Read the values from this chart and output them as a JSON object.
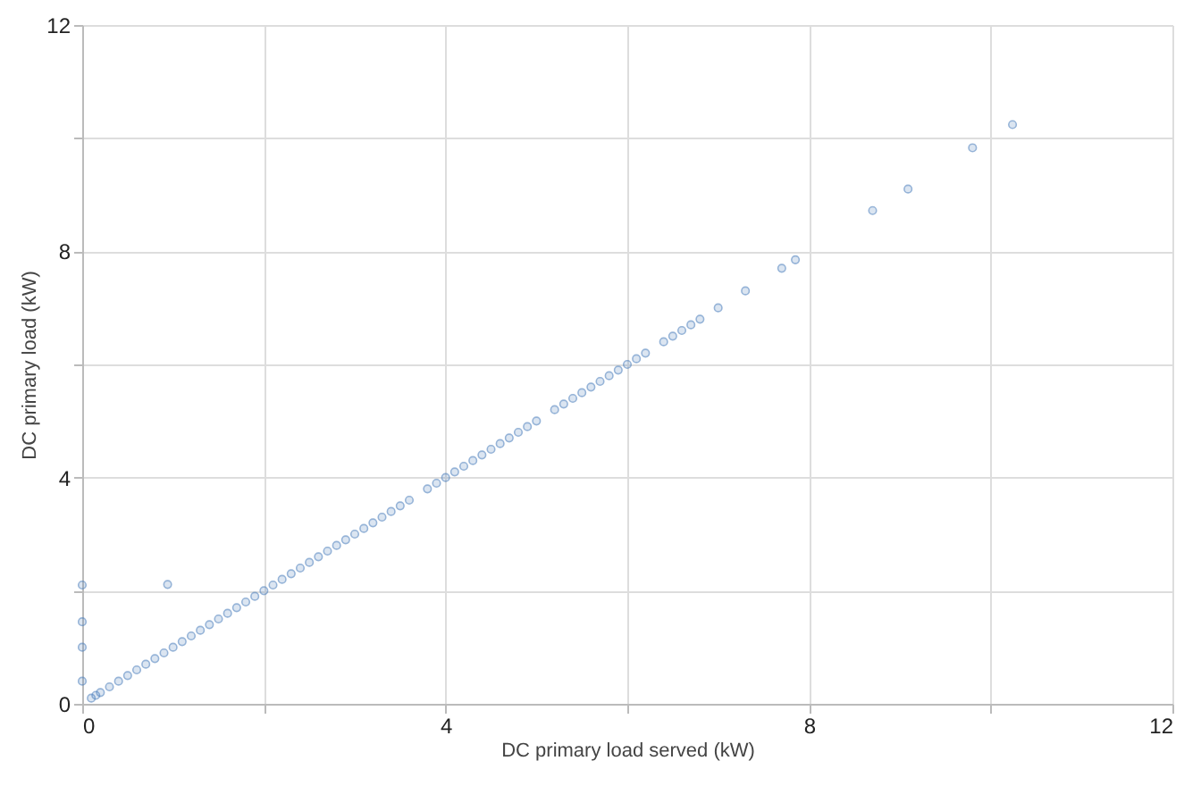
{
  "chart_data": {
    "type": "scatter",
    "xlabel": "DC primary load served (kW)",
    "ylabel": "DC primary load (kW)",
    "xlim": [
      0,
      12
    ],
    "ylim": [
      0,
      12
    ],
    "xticks": [
      0,
      {
        "value": 2,
        "label": null
      },
      4,
      {
        "value": 6,
        "label": null
      },
      8,
      {
        "value": 10,
        "label": null
      },
      12
    ],
    "yticks": [
      0,
      {
        "value": 2,
        "label": null
      },
      4,
      {
        "value": 6,
        "label": null
      },
      8,
      {
        "value": 10,
        "label": null
      },
      12
    ],
    "grid": true,
    "marker": "circle",
    "series": [
      {
        "color": "#4f81bd",
        "x": [
          0,
          0,
          0,
          0,
          0.1,
          0.15,
          0.2,
          0.3,
          0.4,
          0.5,
          0.6,
          0.7,
          0.8,
          0.9,
          1.0,
          1.1,
          1.2,
          1.3,
          1.4,
          1.5,
          1.6,
          1.7,
          1.8,
          1.9,
          2.0,
          2.1,
          2.2,
          2.3,
          2.4,
          2.5,
          2.6,
          2.7,
          2.8,
          2.9,
          3.0,
          3.1,
          3.2,
          3.3,
          3.4,
          3.5,
          3.6,
          3.8,
          3.9,
          4.0,
          4.1,
          4.2,
          4.3,
          4.4,
          4.5,
          4.6,
          4.7,
          4.8,
          4.9,
          5.0,
          5.2,
          5.3,
          5.4,
          5.5,
          5.6,
          5.7,
          5.8,
          5.9,
          6.0,
          6.1,
          6.2,
          6.4,
          6.5,
          6.6,
          6.7,
          6.8,
          7.0,
          7.3,
          7.7,
          7.85,
          0.94,
          8.7,
          9.09,
          9.8,
          10.24
        ],
        "values": [
          2.1,
          1.45,
          1.0,
          0.4,
          0.1,
          0.15,
          0.2,
          0.3,
          0.4,
          0.5,
          0.6,
          0.7,
          0.8,
          0.9,
          1.0,
          1.1,
          1.2,
          1.3,
          1.4,
          1.5,
          1.6,
          1.7,
          1.8,
          1.9,
          2.0,
          2.1,
          2.2,
          2.3,
          2.4,
          2.5,
          2.6,
          2.7,
          2.8,
          2.9,
          3.0,
          3.1,
          3.2,
          3.3,
          3.4,
          3.5,
          3.6,
          3.8,
          3.9,
          4.0,
          4.1,
          4.2,
          4.3,
          4.4,
          4.5,
          4.6,
          4.7,
          4.8,
          4.9,
          5.0,
          5.2,
          5.3,
          5.4,
          5.5,
          5.6,
          5.7,
          5.8,
          5.9,
          6.0,
          6.1,
          6.2,
          6.4,
          6.5,
          6.6,
          6.7,
          6.8,
          7.0,
          7.3,
          7.7,
          7.85,
          2.11,
          8.72,
          9.1,
          9.83,
          10.24
        ]
      }
    ]
  }
}
